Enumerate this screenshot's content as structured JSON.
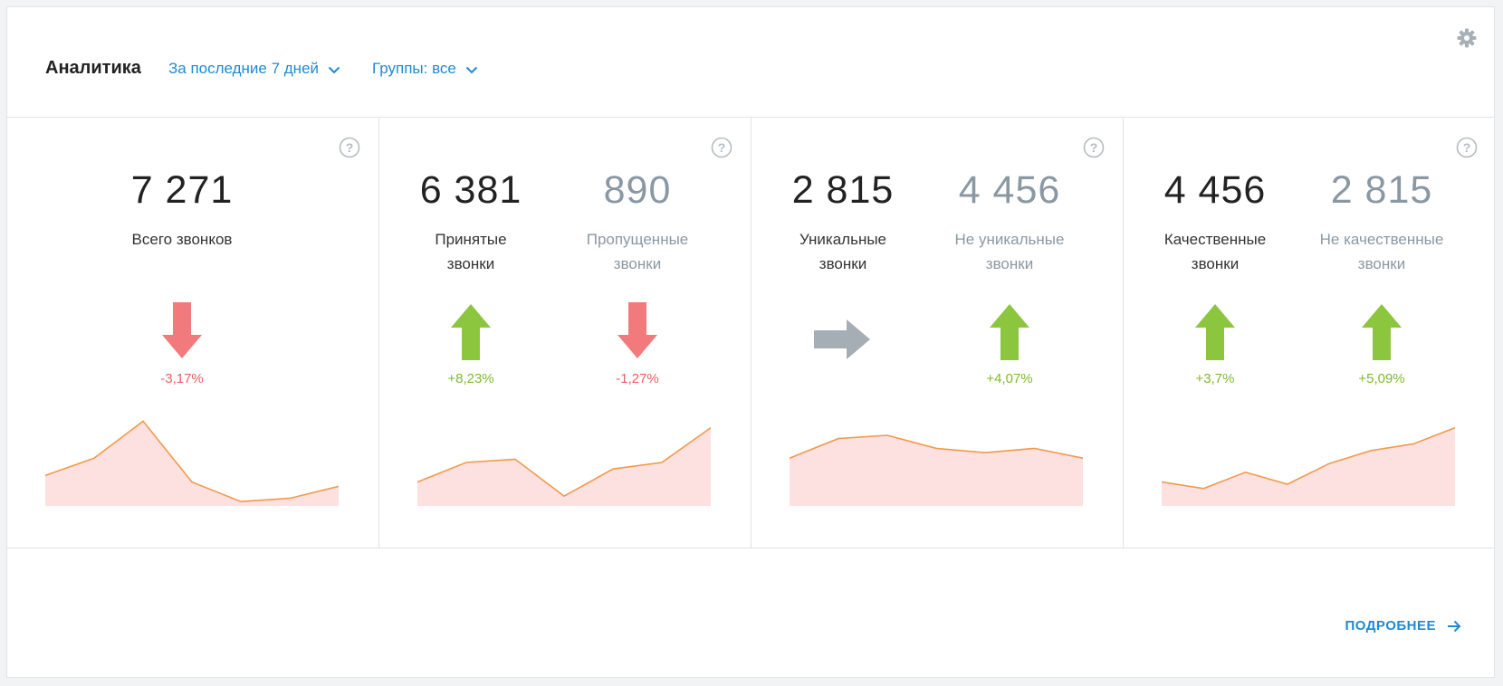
{
  "header": {
    "title": "Аналитика",
    "period_filter": "За последние 7 дней",
    "groups_filter": "Группы: все"
  },
  "colors": {
    "accent": "#1f8ad1",
    "up": "#7fba2b",
    "down": "#ef5d63",
    "neutral": "#a5aeb5",
    "spark_line": "#f29a4a",
    "spark_fill": "#fde0e0"
  },
  "panels": [
    {
      "metrics": [
        {
          "value": "7 271",
          "label": "Всего звонков",
          "trend": "down",
          "change": "-3,17%"
        }
      ],
      "sparkline": [
        28,
        44,
        78,
        22,
        4,
        7,
        18
      ]
    },
    {
      "metrics": [
        {
          "value": "6 381",
          "label": "Принятые звонки",
          "trend": "up",
          "change": "+8,23%"
        },
        {
          "value": "890",
          "label": "Пропущенные звонки",
          "trend": "down",
          "change": "-1,27%"
        }
      ],
      "sparkline": [
        22,
        40,
        43,
        9,
        34,
        40,
        72
      ]
    },
    {
      "metrics": [
        {
          "value": "2 815",
          "label": "Уникальные звонки",
          "trend": "flat",
          "change": ""
        },
        {
          "value": "4 456",
          "label": "Не уникальные звонки",
          "trend": "up",
          "change": "+4,07%"
        }
      ],
      "sparkline": [
        44,
        62,
        65,
        53,
        49,
        53,
        44
      ]
    },
    {
      "metrics": [
        {
          "value": "4 456",
          "label": "Качественные звонки",
          "trend": "up",
          "change": "+3,7%"
        },
        {
          "value": "2 815",
          "label": "Не качественные звонки",
          "trend": "up",
          "change": "+5,09%"
        }
      ],
      "sparkline": [
        22,
        16,
        31,
        20,
        39,
        51,
        57,
        72
      ]
    }
  ],
  "footer": {
    "more_link": "ПОДРОБНЕЕ"
  }
}
